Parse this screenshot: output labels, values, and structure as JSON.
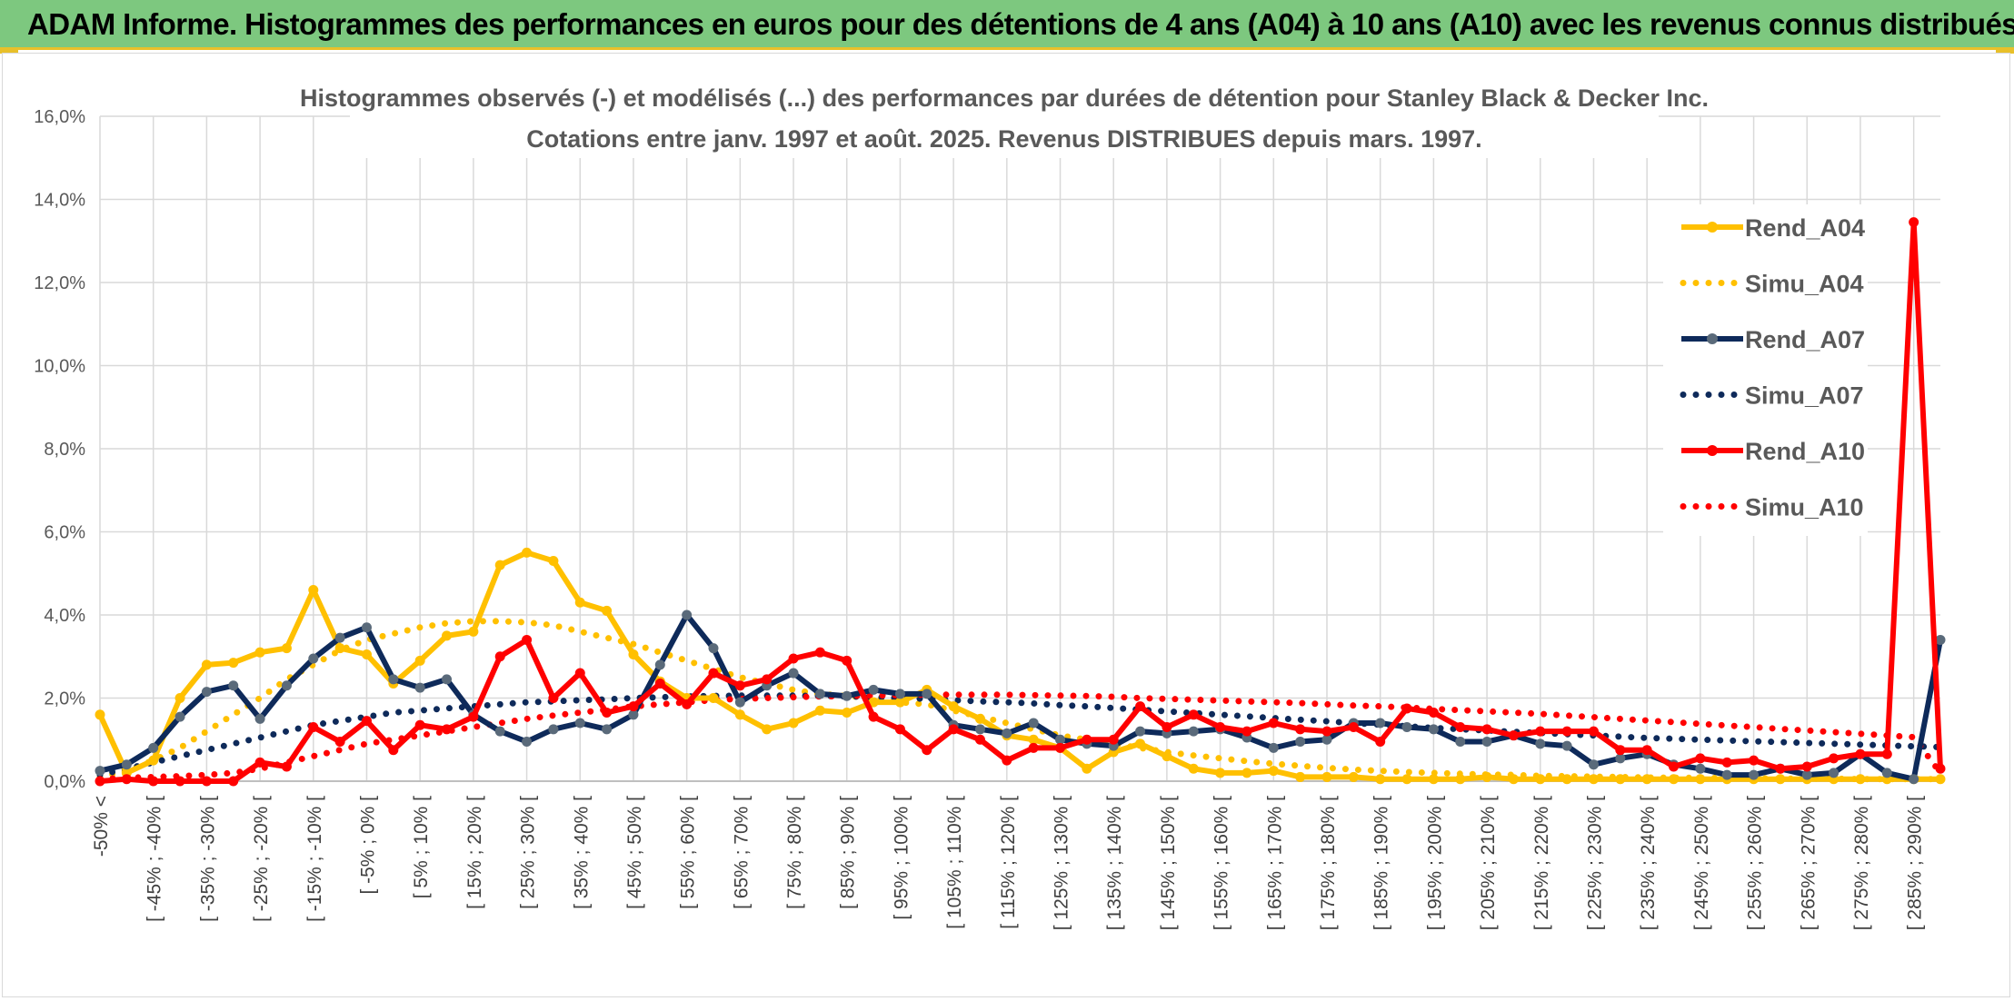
{
  "banner": {
    "title": "ADAM Informe. Histogrammes des performances en euros pour des détentions de 4 ans (A04) à 10 ans (A10) avec les revenus connus distribués"
  },
  "chart_data": {
    "type": "line",
    "title": "Histogrammes observés (-) et modélisés (...) des performances par durées de détention pour Stanley Black & Decker Inc.",
    "subtitle": "Cotations entre janv. 1997 et août. 2025. Revenus DISTRIBUES depuis mars. 1997.",
    "ylim": [
      0,
      16
    ],
    "yticks": [
      "0,0%",
      "2,0%",
      "4,0%",
      "6,0%",
      "8,0%",
      "10,0%",
      "12,0%",
      "14,0%",
      "16,0%"
    ],
    "grid": true,
    "legend_position": "right",
    "x_tick_labels": [
      "-50% <",
      "[ -45% ; -40% [",
      "[ -35% ; -30% [",
      "[ -25% ; -20% [",
      "[ -15% ; -10% [",
      "[ -5% ; 0% [",
      "[ 5% ; 10% [",
      "[ 15% ; 20% [",
      "[ 25% ; 30% [",
      "[ 35% ; 40% [",
      "[ 45% ; 50% [",
      "[ 55% ; 60% [",
      "[ 65% ; 70% [",
      "[ 75% ; 80% [",
      "[ 85% ; 90% [",
      "[ 95% ; 100% [",
      "[ 105% ; 110% [",
      "[ 115% ; 120% [",
      "[ 125% ; 130% [",
      "[ 135% ; 140% [",
      "[ 145% ; 150% [",
      "[ 155% ; 160% [",
      "[ 165% ; 170% [",
      "[ 175% ; 180% [",
      "[ 185% ; 190% [",
      "[ 195% ; 200% [",
      "[ 205% ; 210% [",
      "[ 215% ; 220% [",
      "[ 225% ; 230% [",
      "[ 235% ; 240% [",
      "[ 245% ; 250% [",
      "[ 255% ; 260% [",
      "[ 265% ; 270% [",
      "[ 275% ; 280% [",
      "[ 285% ; 290% ["
    ],
    "series": [
      {
        "name": "Rend_A04",
        "style": "solid",
        "color": "#ffc000",
        "values": [
          1.6,
          0.2,
          0.5,
          2.0,
          2.8,
          2.85,
          3.1,
          3.2,
          4.6,
          3.2,
          3.05,
          2.35,
          2.9,
          3.5,
          3.6,
          5.2,
          5.5,
          5.3,
          4.3,
          4.1,
          3.05,
          2.4,
          2.0,
          2.0,
          1.6,
          1.25,
          1.4,
          1.7,
          1.65,
          1.9,
          1.9,
          2.2,
          1.8,
          1.5,
          1.1,
          1.0,
          0.8,
          0.3,
          0.7,
          0.9,
          0.6,
          0.3,
          0.2,
          0.2,
          0.25,
          0.1,
          0.1,
          0.1,
          0.05,
          0.05,
          0.05,
          0.05,
          0.1,
          0.05,
          0.05,
          0.05,
          0.05,
          0.05,
          0.05,
          0.05,
          0.05,
          0.05,
          0.05,
          0.05,
          0.05,
          0.05,
          0.05,
          0.05,
          0.05,
          0.05
        ]
      },
      {
        "name": "Simu_A04",
        "style": "dotted",
        "color": "#ffc000",
        "values": [
          0.1,
          0.25,
          0.5,
          0.8,
          1.2,
          1.6,
          2.0,
          2.45,
          2.8,
          3.15,
          3.4,
          3.55,
          3.7,
          3.8,
          3.85,
          3.85,
          3.82,
          3.75,
          3.6,
          3.45,
          3.3,
          3.1,
          2.9,
          2.7,
          2.5,
          2.35,
          2.2,
          2.1,
          2.05,
          2.0,
          1.9,
          1.85,
          1.7,
          1.55,
          1.4,
          1.25,
          1.1,
          1.0,
          0.9,
          0.8,
          0.7,
          0.62,
          0.55,
          0.48,
          0.42,
          0.37,
          0.32,
          0.28,
          0.25,
          0.22,
          0.2,
          0.18,
          0.16,
          0.15,
          0.13,
          0.12,
          0.11,
          0.1,
          0.09,
          0.08,
          0.08,
          0.07,
          0.07,
          0.06,
          0.06,
          0.06,
          0.05,
          0.05,
          0.05,
          0.05
        ]
      },
      {
        "name": "Rend_A07",
        "style": "solid",
        "color": "#0e2a5a",
        "values": [
          0.25,
          0.4,
          0.8,
          1.55,
          2.15,
          2.3,
          1.5,
          2.3,
          2.95,
          3.45,
          3.7,
          2.45,
          2.25,
          2.45,
          1.6,
          1.2,
          0.95,
          1.25,
          1.4,
          1.25,
          1.6,
          2.8,
          4.0,
          3.2,
          1.9,
          2.3,
          2.6,
          2.1,
          2.05,
          2.2,
          2.1,
          2.1,
          1.35,
          1.25,
          1.15,
          1.4,
          1.0,
          0.9,
          0.85,
          1.2,
          1.15,
          1.2,
          1.25,
          1.05,
          0.8,
          0.95,
          1.0,
          1.4,
          1.4,
          1.3,
          1.25,
          0.95,
          0.95,
          1.1,
          0.9,
          0.85,
          0.4,
          0.55,
          0.65,
          0.4,
          0.3,
          0.15,
          0.15,
          0.3,
          0.15,
          0.2,
          0.65,
          0.2,
          0.05,
          3.4
        ]
      },
      {
        "name": "Simu_A07",
        "style": "dotted",
        "color": "#0e2a5a",
        "values": [
          0.15,
          0.3,
          0.45,
          0.6,
          0.75,
          0.9,
          1.05,
          1.2,
          1.35,
          1.45,
          1.55,
          1.65,
          1.7,
          1.75,
          1.8,
          1.85,
          1.9,
          1.92,
          1.95,
          1.97,
          2.0,
          2.02,
          2.04,
          2.05,
          2.06,
          2.06,
          2.06,
          2.05,
          2.04,
          2.03,
          2.0,
          1.98,
          1.95,
          1.92,
          1.9,
          1.87,
          1.83,
          1.8,
          1.76,
          1.72,
          1.68,
          1.64,
          1.6,
          1.56,
          1.52,
          1.48,
          1.44,
          1.4,
          1.36,
          1.32,
          1.28,
          1.25,
          1.22,
          1.19,
          1.16,
          1.13,
          1.1,
          1.07,
          1.04,
          1.02,
          1.0,
          0.98,
          0.96,
          0.94,
          0.92,
          0.9,
          0.88,
          0.86,
          0.84,
          0.82
        ]
      },
      {
        "name": "Rend_A10",
        "style": "solid",
        "color": "#ff0000",
        "values": [
          0.0,
          0.05,
          0.0,
          0.0,
          0.0,
          0.0,
          0.45,
          0.35,
          1.3,
          0.95,
          1.45,
          0.75,
          1.35,
          1.25,
          1.55,
          3.0,
          3.4,
          2.0,
          2.6,
          1.65,
          1.8,
          2.35,
          1.85,
          2.6,
          2.3,
          2.45,
          2.95,
          3.1,
          2.9,
          1.55,
          1.25,
          0.75,
          1.25,
          1.0,
          0.5,
          0.8,
          0.8,
          1.0,
          1.0,
          1.8,
          1.3,
          1.6,
          1.3,
          1.2,
          1.4,
          1.25,
          1.2,
          1.3,
          0.95,
          1.75,
          1.65,
          1.3,
          1.25,
          1.1,
          1.2,
          1.2,
          1.2,
          0.75,
          0.75,
          0.35,
          0.55,
          0.45,
          0.5,
          0.3,
          0.35,
          0.55,
          0.65,
          0.65,
          13.45,
          0.3
        ]
      },
      {
        "name": "Simu_A10",
        "style": "dotted",
        "color": "#ff0000",
        "values": [
          0.05,
          0.08,
          0.1,
          0.12,
          0.15,
          0.2,
          0.3,
          0.45,
          0.6,
          0.75,
          0.9,
          1.0,
          1.1,
          1.2,
          1.3,
          1.4,
          1.5,
          1.58,
          1.65,
          1.72,
          1.8,
          1.85,
          1.9,
          1.95,
          1.98,
          2.0,
          2.02,
          2.04,
          2.05,
          2.06,
          2.07,
          2.08,
          2.08,
          2.08,
          2.08,
          2.07,
          2.06,
          2.05,
          2.03,
          2.0,
          1.98,
          1.96,
          1.94,
          1.92,
          1.9,
          1.88,
          1.85,
          1.82,
          1.8,
          1.77,
          1.74,
          1.71,
          1.68,
          1.65,
          1.62,
          1.58,
          1.54,
          1.5,
          1.46,
          1.42,
          1.38,
          1.34,
          1.3,
          1.26,
          1.22,
          1.18,
          1.14,
          1.1,
          1.06,
          0.2
        ]
      }
    ]
  }
}
